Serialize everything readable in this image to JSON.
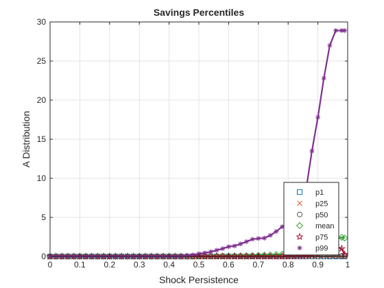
{
  "chart_data": {
    "type": "line",
    "title": "Savings Percentiles",
    "xlabel": "Shock Persistence",
    "ylabel": "A Distribution",
    "xlim": [
      0,
      1
    ],
    "ylim": [
      0,
      30
    ],
    "xticks": [
      "0",
      "0.1",
      "0.2",
      "0.3",
      "0.4",
      "0.5",
      "0.6",
      "0.7",
      "0.8",
      "0.9",
      "1"
    ],
    "yticks": [
      "0",
      "5",
      "10",
      "15",
      "20",
      "25",
      "30"
    ],
    "grid": true,
    "legend_position": "bottom-right",
    "x": [
      0,
      0.02,
      0.04,
      0.06,
      0.08,
      0.1,
      0.12,
      0.14,
      0.16,
      0.18,
      0.2,
      0.22,
      0.24,
      0.26,
      0.28,
      0.3,
      0.32,
      0.34,
      0.36,
      0.38,
      0.4,
      0.42,
      0.44,
      0.46,
      0.48,
      0.5,
      0.52,
      0.54,
      0.56,
      0.58,
      0.6,
      0.62,
      0.64,
      0.66,
      0.68,
      0.7,
      0.72,
      0.74,
      0.76,
      0.78,
      0.8,
      0.82,
      0.84,
      0.86,
      0.88,
      0.9,
      0.92,
      0.94,
      0.96,
      0.98,
      0.99
    ],
    "series": [
      {
        "name": "p1",
        "marker": "square",
        "color": "#0072BD",
        "values": [
          0,
          0,
          0,
          0,
          0,
          0,
          0,
          0,
          0,
          0,
          0,
          0,
          0,
          0,
          0,
          0,
          0,
          0,
          0,
          0,
          0,
          0,
          0,
          0,
          0,
          0,
          0,
          0,
          0,
          0,
          0,
          0,
          0,
          0,
          0,
          0,
          0,
          0,
          0,
          0,
          0,
          0,
          0,
          0,
          0,
          0,
          0,
          0,
          0,
          0,
          0
        ]
      },
      {
        "name": "p25",
        "marker": "x",
        "color": "#D95319",
        "values": [
          0,
          0,
          0,
          0,
          0,
          0,
          0,
          0,
          0,
          0,
          0,
          0,
          0,
          0,
          0,
          0,
          0,
          0,
          0,
          0,
          0,
          0,
          0,
          0,
          0,
          0,
          0,
          0,
          0,
          0,
          0,
          0,
          0,
          0,
          0,
          0,
          0,
          0,
          0,
          0,
          0,
          0,
          0,
          0,
          0,
          0,
          0,
          0,
          0,
          0,
          0
        ]
      },
      {
        "name": "p50",
        "marker": "circle",
        "color": "#555555",
        "values": [
          0,
          0,
          0,
          0,
          0,
          0,
          0,
          0,
          0,
          0,
          0,
          0,
          0,
          0,
          0,
          0,
          0,
          0,
          0,
          0,
          0,
          0,
          0,
          0,
          0,
          0,
          0,
          0,
          0,
          0,
          0,
          0,
          0,
          0,
          0,
          0,
          0,
          0,
          0,
          0,
          0,
          0,
          0,
          0,
          0,
          0,
          0,
          0.02,
          0.05,
          0.05,
          0.05
        ]
      },
      {
        "name": "mean",
        "marker": "diamond",
        "color": "#2CA02C",
        "values": [
          0,
          0,
          0,
          0,
          0,
          0,
          0,
          0,
          0,
          0,
          0,
          0,
          0,
          0,
          0,
          0,
          0,
          0,
          0,
          0,
          0,
          0,
          0,
          0,
          0,
          0.02,
          0.03,
          0.04,
          0.05,
          0.06,
          0.07,
          0.08,
          0.09,
          0.1,
          0.12,
          0.14,
          0.17,
          0.2,
          0.24,
          0.29,
          0.35,
          0.42,
          0.52,
          0.65,
          0.82,
          1.05,
          1.35,
          1.75,
          2.2,
          2.45,
          2.35
        ]
      },
      {
        "name": "p75",
        "marker": "star",
        "color": "#A2142F",
        "values": [
          0,
          0,
          0,
          0,
          0,
          0,
          0,
          0,
          0,
          0,
          0,
          0,
          0,
          0,
          0,
          0,
          0,
          0,
          0,
          0,
          0,
          0,
          0,
          0,
          0,
          0,
          0,
          0,
          0,
          0,
          0,
          0,
          0,
          0,
          0,
          0,
          0,
          0,
          0,
          0.01,
          0.02,
          0.04,
          0.07,
          0.11,
          0.17,
          0.3,
          0.55,
          0.85,
          1.3,
          1.0,
          0.25
        ]
      },
      {
        "name": "p99",
        "marker": "asterisk",
        "color": "#7E2F8E",
        "values": [
          0,
          0,
          0,
          0,
          0,
          0,
          0,
          0,
          0,
          0,
          0,
          0,
          0,
          0,
          0,
          0,
          0,
          0,
          0,
          0,
          0,
          0,
          0,
          0.1,
          0.2,
          0.35,
          0.45,
          0.6,
          0.8,
          1.0,
          1.25,
          1.35,
          1.6,
          1.9,
          2.2,
          2.3,
          2.35,
          2.7,
          3.2,
          3.8,
          4.4,
          5.3,
          6.5,
          8.5,
          13.5,
          17.8,
          22.8,
          27.0,
          28.9,
          28.9,
          28.9
        ]
      }
    ]
  }
}
